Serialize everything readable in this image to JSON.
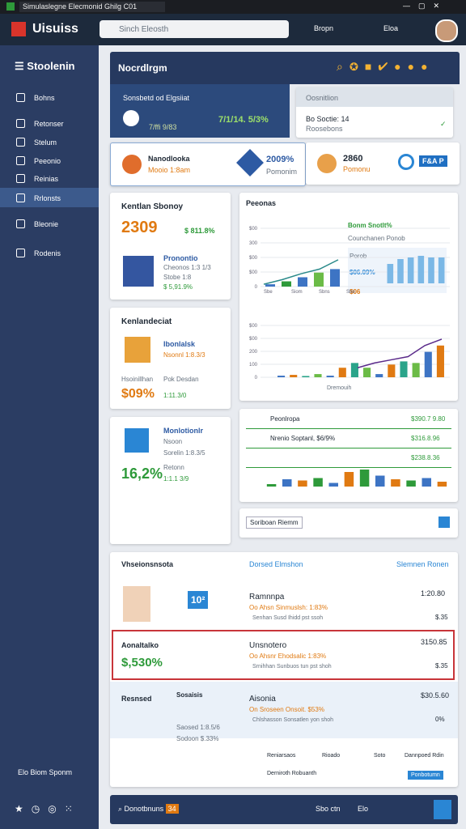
{
  "browser": {
    "tab_title": "Simulaslegne Elecmonid Ghilg C01"
  },
  "header": {
    "logo": "Uisuiss",
    "search": "Sinch Eleosth",
    "links": [
      "Bropn",
      "Eloa"
    ]
  },
  "sidebar": {
    "title": "Stoolenin",
    "items": [
      "Bohns",
      "Retonser",
      "Stelum",
      "Peeonio",
      "Reinias",
      "Rrlonsts",
      "Bleonie",
      "Rodenis"
    ],
    "footer": "Elo Biom Sponm"
  },
  "page": {
    "title": "Nocrdlrgm"
  },
  "summary": {
    "title": "Sonsbetd od Elgsiiat",
    "left": "7/ffi 9/83",
    "right": "7/1/14. 5/3%"
  },
  "status": {
    "title": "Oosnitlion",
    "line": "Bo Soctie: 14",
    "sub": "Roosebons"
  },
  "profile_left": {
    "name": "Nanodlooka",
    "meta": "Mooio 1:8am",
    "value": "2009%",
    "label": "Pomonim"
  },
  "profile_right": {
    "value": "2860",
    "label": "Pomonu",
    "badge": "F&A P"
  },
  "kpi1": {
    "title": "Kentlan Sbonoy",
    "value": "2309",
    "change": "$ 811.8%",
    "name": "Pronontio",
    "line1": "Cheonos 1:3 1/3",
    "line2": "Stobe 1:8",
    "line3": "$ 5,91.9%"
  },
  "kpi2": {
    "title": "Kenlandeciat",
    "name": "Ibonlalsk",
    "line1": "Nsonnl 1:8.3/3",
    "left": "Hsoinillhan",
    "right": "Pok Desdan",
    "value": "$09%",
    "sub": "1:11.3/0"
  },
  "kpi3": {
    "title": "Monlotionlr",
    "name": "Nsoon",
    "line1": "Sorelin 1:8.3/5",
    "value": "16,2%",
    "label": "Retonn",
    "sub": "1:1.1 3/9"
  },
  "chart_card": {
    "title": "Peeonas",
    "legend_title": "Bonm Snotlt%",
    "legend_sub": "Counchanen Ponob",
    "inset_title": "Porob",
    "inset_value": "$06.09%",
    "inset_sub": "$06",
    "top_labels": [
      "$00",
      "300",
      "$00",
      "$00",
      "0"
    ],
    "top_x": [
      "Sbe",
      "Siom",
      "Sbns",
      "Sbe"
    ],
    "ylim": [
      0,
      500
    ],
    "top_bars": [
      20,
      45,
      80,
      120,
      150
    ],
    "top_line": [
      20,
      60,
      110,
      150,
      230
    ],
    "inset_lim": [
      0,
      100
    ],
    "inset_bars": [
      60,
      75,
      80,
      85,
      80,
      80
    ],
    "bottom_labels": [
      "$00",
      "$00",
      "200",
      "100",
      "0"
    ],
    "bottom_x": "Dremouih",
    "bottom_bars": [
      10,
      15,
      8,
      20,
      10,
      60,
      90,
      60,
      20,
      80,
      100,
      90,
      160,
      200
    ],
    "bottom_line": [
      60,
      90,
      110,
      130,
      200,
      240
    ]
  },
  "table_card": {
    "rows": [
      {
        "label": "Peonlropa",
        "value": "$390.7 9.80"
      },
      {
        "label": "Nrenio Soptanl, $6/9%",
        "value": "$316.8.96"
      },
      {
        "label": "",
        "value": "$238.8.36"
      }
    ],
    "ylim": [
      0,
      100
    ],
    "bars": [
      10,
      30,
      25,
      35,
      15,
      60,
      70,
      45,
      30,
      25,
      35,
      20
    ]
  },
  "filter": "Soriboan Riemm",
  "list": {
    "header": [
      "Vhseionsnsota",
      "Dorsed Elmshon",
      "Slemnen Ronen"
    ],
    "rows": [
      {
        "left": "",
        "badge": "10²",
        "name": "Ramnnpa",
        "sub": "Oo Ahsn Sinmuslsh: 1:83%",
        "meta": "Senhan Susd Ihidd pst ssoh",
        "amount": "1:20.80",
        "qty": "$.35"
      },
      {
        "left": "Aonaltalko",
        "badge": "$,530%",
        "name": "Unsnotero",
        "sub": "Oo Ahsnr Ehodsalic 1:83%",
        "meta": "Srnihhan Sunbuos tun pst shoh",
        "amount": "3150.85",
        "qty": "$.35"
      },
      {
        "left": "Resnsed",
        "badge": "Sosaisis",
        "name": "Aisonia",
        "sub": "On Sroseen Onsoit. $53%",
        "meta": "Chlshasson Sonsatlen yon shoh",
        "amount": "$30.5.60",
        "qty": "0%"
      }
    ],
    "row3_lines": [
      "Saosed 1:8.5/6",
      "Sodoon $.33%"
    ],
    "actions": [
      "Reniarsaos",
      "Rioado",
      "Soto",
      "Dannpoed Rdin",
      "Derniroth Robuanth",
      "Ponbotumn"
    ]
  },
  "footer_bar": {
    "tab": "Donotbnuns",
    "badge": "34",
    "links": [
      "Sbo ctn",
      "Elo"
    ]
  }
}
